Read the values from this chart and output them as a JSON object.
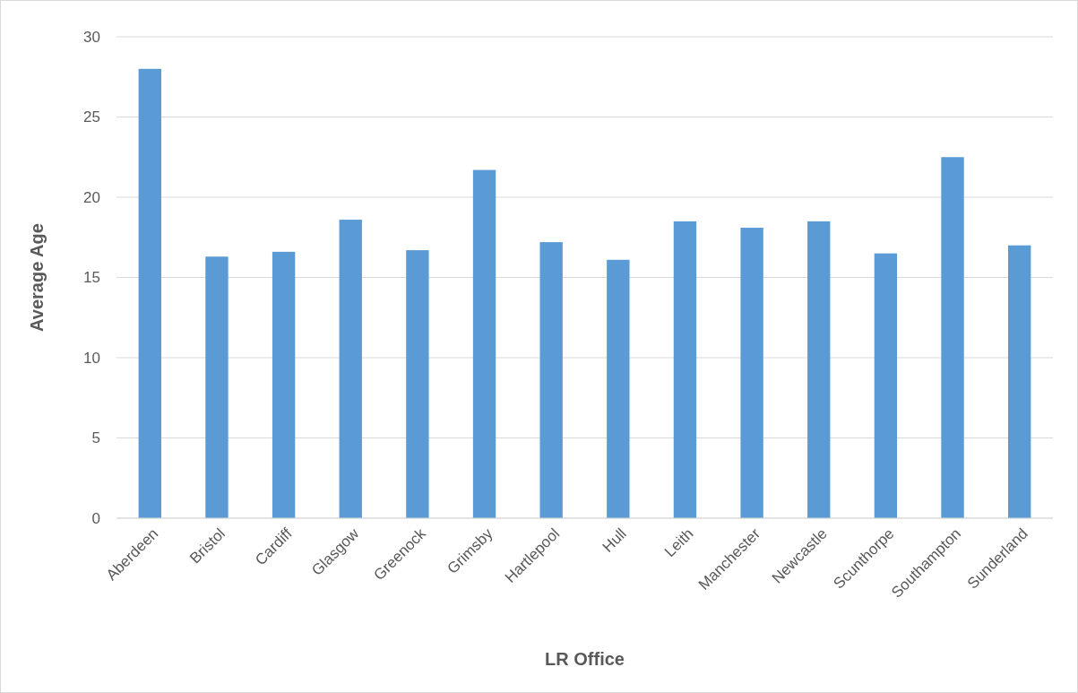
{
  "chart_data": {
    "type": "bar",
    "xlabel": "LR Office",
    "ylabel": "Average Age",
    "categories": [
      "Aberdeen",
      "Bristol",
      "Cardiff",
      "Glasgow",
      "Greenock",
      "Grimsby",
      "Hartlepool",
      "Hull",
      "Leith",
      "Manchester",
      "Newcastle",
      "Scunthorpe",
      "Southampton",
      "Sunderland"
    ],
    "values": [
      28.0,
      16.3,
      16.6,
      18.6,
      16.7,
      21.7,
      17.2,
      16.1,
      18.5,
      18.1,
      18.5,
      16.5,
      22.5,
      17.0
    ],
    "color": "#5b9bd5",
    "ylim": [
      0,
      30
    ],
    "yticks": [
      0,
      5,
      10,
      15,
      20,
      25,
      30
    ],
    "grid": "y"
  }
}
